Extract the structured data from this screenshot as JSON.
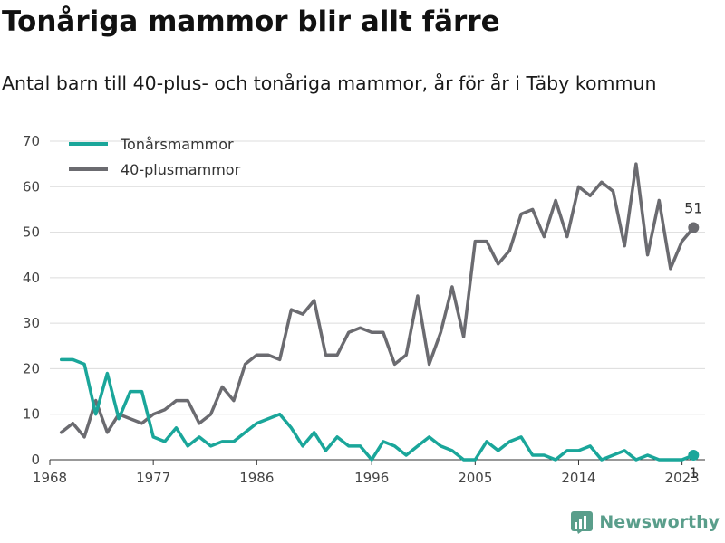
{
  "title": "Tonåriga mammor blir allt färre",
  "subtitle": "Antal barn till 40-plus- och tonåriga mammor, år för år i Täby kommun",
  "brand": "Newsworthy",
  "colors": {
    "teens": "#1aa69a",
    "forty_plus": "#6b6b70",
    "grid": "#dcdcdc",
    "brand": "#5a9e8b"
  },
  "chart_data": {
    "type": "line",
    "x": [
      1969,
      1970,
      1971,
      1972,
      1973,
      1974,
      1975,
      1976,
      1977,
      1978,
      1979,
      1980,
      1981,
      1982,
      1983,
      1984,
      1985,
      1986,
      1987,
      1988,
      1989,
      1990,
      1991,
      1992,
      1993,
      1994,
      1995,
      1996,
      1997,
      1998,
      1999,
      2000,
      2001,
      2002,
      2003,
      2004,
      2005,
      2006,
      2007,
      2008,
      2009,
      2010,
      2011,
      2012,
      2013,
      2014,
      2015,
      2016,
      2017,
      2018,
      2019,
      2020,
      2021,
      2022,
      2023,
      2024
    ],
    "xticks": [
      1968,
      1977,
      1986,
      1996,
      2005,
      2014,
      2023
    ],
    "ylim": [
      0,
      70
    ],
    "yticks": [
      0,
      10,
      20,
      30,
      40,
      50,
      60,
      70
    ],
    "grid": true,
    "legend_position": "top-left",
    "series": [
      {
        "name": "Tonårsmammor",
        "color": "#1aa69a",
        "values": [
          22,
          22,
          21,
          10,
          19,
          9,
          15,
          15,
          5,
          4,
          7,
          3,
          5,
          3,
          4,
          4,
          6,
          8,
          9,
          10,
          7,
          3,
          6,
          2,
          5,
          3,
          3,
          0,
          4,
          3,
          1,
          3,
          5,
          3,
          2,
          0,
          0,
          4,
          2,
          4,
          5,
          1,
          1,
          0,
          2,
          2,
          3,
          0,
          1,
          2,
          0,
          1,
          0,
          0,
          0,
          1
        ],
        "end_label": "1"
      },
      {
        "name": "40-plusmammor",
        "color": "#6b6b70",
        "values": [
          6,
          8,
          5,
          13,
          6,
          10,
          9,
          8,
          10,
          11,
          13,
          13,
          8,
          10,
          16,
          13,
          21,
          23,
          23,
          22,
          33,
          32,
          35,
          23,
          23,
          28,
          29,
          28,
          28,
          21,
          23,
          36,
          21,
          28,
          38,
          27,
          48,
          48,
          43,
          46,
          54,
          55,
          49,
          57,
          49,
          60,
          58,
          61,
          59,
          47,
          65,
          45,
          57,
          42,
          48,
          51
        ],
        "end_label": "51"
      }
    ]
  }
}
